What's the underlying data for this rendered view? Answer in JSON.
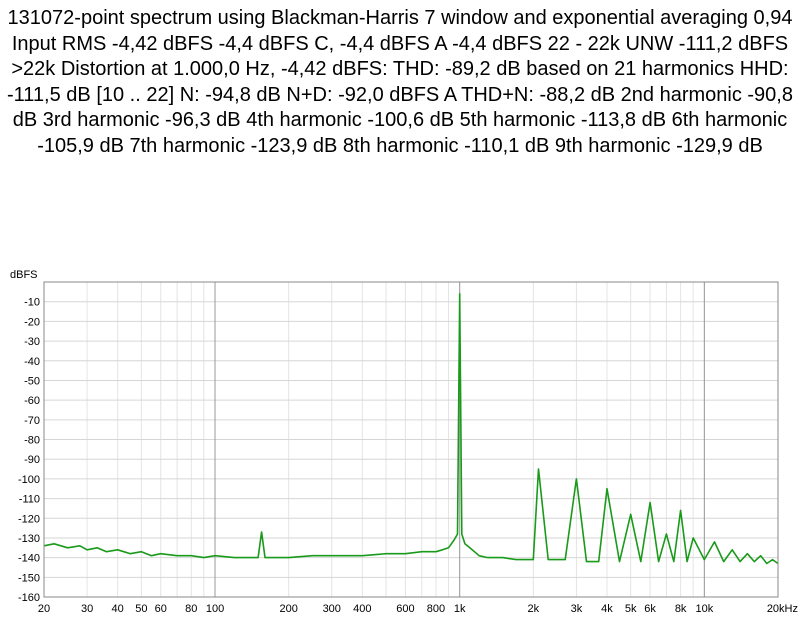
{
  "chart_data": {
    "type": "line",
    "title": "131072-point spectrum using Blackman-Harris 7 window and exponential averaging 0,94 Input RMS -4,42 dBFS -4,4 dBFS C, -4,4 dBFS A -4,4 dBFS 22 - 22k UNW -111,2 dBFS >22k Distortion at 1.000,0 Hz, -4,42 dBFS: THD: -89,2 dB based on 21 harmonics HHD: -111,5 dB [10 .. 22] N: -94,8 dB N+D: -92,0 dBFS A THD+N: -88,2 dB 2nd harmonic -90,8 dB 3rd harmonic -96,3 dB 4th harmonic -100,6 dB 5th harmonic -113,8 dB 6th harmonic -105,9 dB 7th harmonic -123,9 dB 8th harmonic -110,1 dB 9th harmonic -129,9 dB",
    "ylabel": "dBFS",
    "xlabel": "",
    "x_scale": "log",
    "xlim": [
      20,
      20000
    ],
    "ylim": [
      -160,
      0
    ],
    "grid": true,
    "x_tick_values": [
      20,
      30,
      40,
      50,
      60,
      80,
      100,
      200,
      300,
      400,
      600,
      800,
      1000,
      2000,
      3000,
      4000,
      5000,
      6000,
      8000,
      10000,
      20000
    ],
    "x_tick_labels": [
      "20",
      "30",
      "40",
      "50",
      "60",
      "80",
      "100",
      "200",
      "300",
      "400",
      "600",
      "800",
      "1k",
      "2k",
      "3k",
      "4k",
      "5k",
      "6k",
      "8k",
      "10k",
      "20kHz"
    ],
    "y_tick_values": [
      -10,
      -20,
      -30,
      -40,
      -50,
      -60,
      -70,
      -80,
      -90,
      -100,
      -110,
      -120,
      -130,
      -140,
      -150,
      -160
    ],
    "y_tick_labels": [
      "-10",
      "-20",
      "-30",
      "-40",
      "-50",
      "-60",
      "-70",
      "-80",
      "-90",
      "-100",
      "-110",
      "-120",
      "-130",
      "-140",
      "-150",
      "-160"
    ],
    "series": [
      {
        "color": "#1a9a1a",
        "x": [
          20,
          22,
          25,
          28,
          30,
          33,
          36,
          40,
          45,
          50,
          55,
          60,
          70,
          80,
          90,
          100,
          120,
          140,
          150,
          155,
          160,
          165,
          170,
          200,
          250,
          300,
          400,
          500,
          600,
          700,
          800,
          850,
          900,
          950,
          980,
          1000,
          1020,
          1050,
          1100,
          1150,
          1200,
          1300,
          1400,
          1500,
          1700,
          1900,
          2000,
          2100,
          2300,
          2500,
          2700,
          3000,
          3300,
          3700,
          4000,
          4500,
          5000,
          5500,
          6000,
          6500,
          7000,
          7500,
          8000,
          8500,
          9000,
          10000,
          11000,
          12000,
          13000,
          14000,
          15000,
          16000,
          17000,
          18000,
          19000,
          20000
        ],
        "y": [
          -134,
          -133,
          -135,
          -134,
          -136,
          -135,
          -137,
          -136,
          -138,
          -137,
          -139,
          -138,
          -139,
          -139,
          -140,
          -139,
          -140,
          -140,
          -140,
          -127,
          -140,
          -140,
          -140,
          -140,
          -139,
          -139,
          -139,
          -138,
          -138,
          -137,
          -137,
          -136,
          -135,
          -131,
          -128,
          -6,
          -128,
          -133,
          -135,
          -137,
          -139,
          -140,
          -140,
          -140,
          -141,
          -141,
          -141,
          -95,
          -141,
          -141,
          -141,
          -100,
          -142,
          -142,
          -105,
          -142,
          -118,
          -142,
          -112,
          -142,
          -128,
          -142,
          -116,
          -142,
          -130,
          -141,
          -132,
          -142,
          -136,
          -142,
          -138,
          -142,
          -139,
          -143,
          -141,
          -143
        ]
      }
    ]
  }
}
